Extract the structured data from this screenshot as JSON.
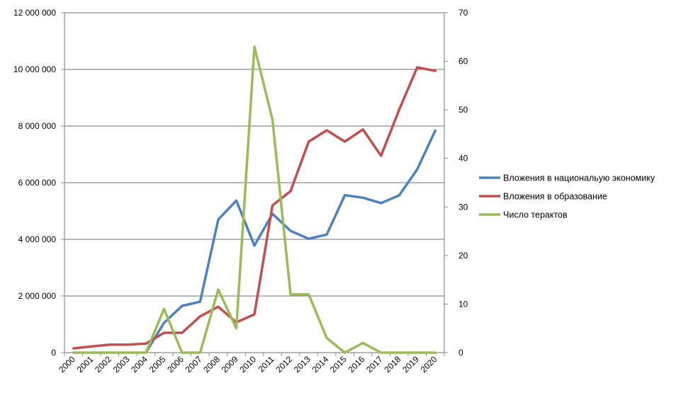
{
  "chart_data": {
    "type": "line",
    "title": "",
    "xlabel": "",
    "ylabel": "",
    "categories": [
      "2000",
      "2001",
      "2002",
      "2003",
      "2004",
      "2005",
      "2006",
      "2007",
      "2008",
      "2009",
      "2010",
      "2011",
      "2012",
      "2013",
      "2014",
      "2015",
      "2016",
      "2017",
      "2018",
      "2019",
      "2020"
    ],
    "y_left": {
      "min": 0,
      "max": 12000000,
      "ticks": [
        0,
        2000000,
        4000000,
        6000000,
        8000000,
        10000000,
        12000000
      ],
      "tick_labels": [
        "0",
        "2 000 000",
        "4 000 000",
        "6 000 000",
        "8 000 000",
        "10 000 000",
        "12 000 000"
      ]
    },
    "y_right": {
      "min": 0,
      "max": 70,
      "ticks": [
        0,
        10,
        20,
        30,
        40,
        50,
        60,
        70
      ],
      "tick_labels": [
        "0",
        "10",
        "20",
        "30",
        "40",
        "50",
        "60",
        "70"
      ]
    },
    "grid": true,
    "legend_position": "right",
    "series": [
      {
        "name": "Вложения в национальую экономику",
        "axis": "left",
        "color": "#4f81bd",
        "start_index": 4,
        "values": [
          null,
          null,
          null,
          null,
          0,
          1050000,
          1650000,
          1800000,
          4700000,
          5370000,
          3780000,
          4900000,
          4300000,
          4020000,
          4170000,
          5560000,
          5470000,
          5280000,
          5550000,
          6470000,
          7840000
        ]
      },
      {
        "name": "Вложения в образование",
        "axis": "left",
        "color": "#c0504d",
        "start_index": 0,
        "values": [
          150000,
          220000,
          280000,
          280000,
          320000,
          700000,
          700000,
          1280000,
          1620000,
          1070000,
          1350000,
          5200000,
          5700000,
          7450000,
          7850000,
          7450000,
          7880000,
          6950000,
          8570000,
          10070000,
          9950000
        ]
      },
      {
        "name": "Число терактов",
        "axis": "right",
        "color": "#9bbb59",
        "start_index": 0,
        "values": [
          0,
          0,
          0,
          0,
          0,
          9,
          0,
          0,
          13,
          5,
          63,
          48,
          12,
          12,
          3,
          0,
          2,
          0,
          0,
          0,
          0
        ]
      }
    ]
  }
}
